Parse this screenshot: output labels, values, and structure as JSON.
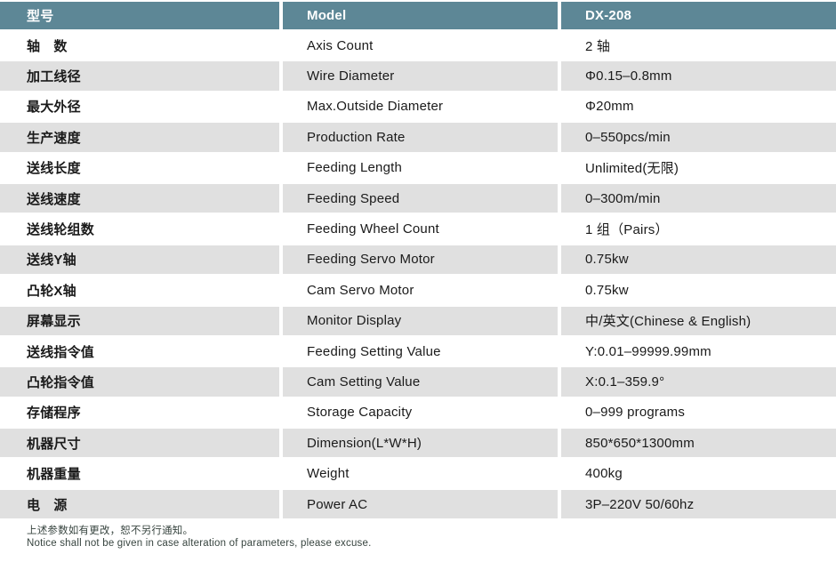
{
  "table": {
    "header": {
      "cn": "型号",
      "en": "Model",
      "value": "DX-208"
    },
    "rows": [
      {
        "cn": "轴　数",
        "en": "Axis Count",
        "value": "2 轴"
      },
      {
        "cn": "加工线径",
        "en": "Wire Diameter",
        "value": "Φ0.15–0.8mm"
      },
      {
        "cn": "最大外径",
        "en": "Max.Outside Diameter",
        "value": "Φ20mm"
      },
      {
        "cn": "生产速度",
        "en": "Production Rate",
        "value": "0–550pcs/min"
      },
      {
        "cn": "送线长度",
        "en": "Feeding Length",
        "value": "Unlimited(无限)"
      },
      {
        "cn": "送线速度",
        "en": "Feeding Speed",
        "value": "0–300m/min"
      },
      {
        "cn": "送线轮组数",
        "en": "Feeding Wheel Count",
        "value": "1 组（Pairs）"
      },
      {
        "cn": "送线Y轴",
        "en": "Feeding Servo Motor",
        "value": "0.75kw"
      },
      {
        "cn": "凸轮X轴",
        "en": "Cam Servo Motor",
        "value": "0.75kw"
      },
      {
        "cn": "屏幕显示",
        "en": "Monitor Display",
        "value": "中/英文(Chinese & English)"
      },
      {
        "cn": "送线指令值",
        "en": "Feeding Setting Value",
        "value": "Y:0.01–99999.99mm"
      },
      {
        "cn": "凸轮指令值",
        "en": "Cam Setting Value",
        "value": "X:0.1–359.9°"
      },
      {
        "cn": "存储程序",
        "en": "Storage Capacity",
        "value": "0–999 programs"
      },
      {
        "cn": "机器尺寸",
        "en": "Dimension(L*W*H)",
        "value": "850*650*1300mm"
      },
      {
        "cn": "机器重量",
        "en": "Weight",
        "value": "400kg"
      },
      {
        "cn": "电　源",
        "en": "Power AC",
        "value": "3P–220V 50/60hz"
      }
    ],
    "notes": {
      "cn": "上述参数如有更改，恕不另行通知。",
      "en": "Notice shall not be given in case alteration of parameters, please excuse."
    }
  },
  "colors": {
    "header_bg": "#5d8796",
    "alt_row_bg": "#e0e0e0",
    "header_text": "#ffffff",
    "body_text": "#1a1a1a"
  }
}
